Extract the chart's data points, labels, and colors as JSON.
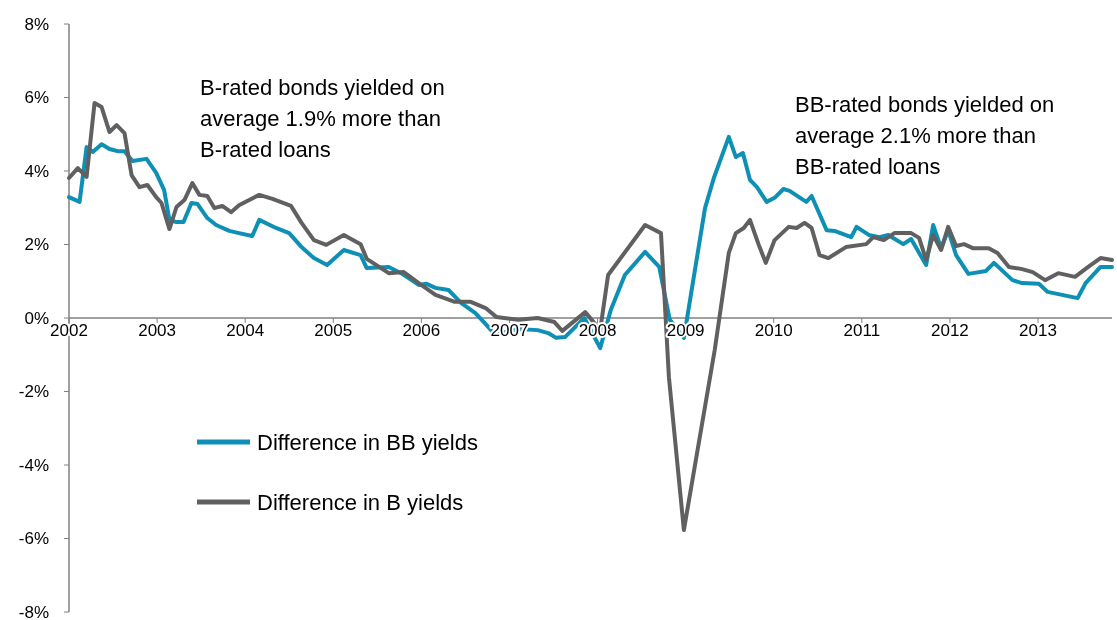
{
  "chart_data": {
    "type": "line",
    "annotations": [
      "B-rated bonds yielded on average 1.9% more than B-rated loans",
      "BB-rated bonds yielded on average 2.1% more than BB-rated loans"
    ],
    "xlim": [
      2002,
      2013.84
    ],
    "xticks": [
      2002,
      2003,
      2004,
      2005,
      2006,
      2007,
      2008,
      2009,
      2010,
      2011,
      2012,
      2013
    ],
    "ylim": [
      -8,
      8
    ],
    "yticks": [
      {
        "value": -8,
        "label": "-8%"
      },
      {
        "value": -6,
        "label": "-6%"
      },
      {
        "value": -4,
        "label": "-4%"
      },
      {
        "value": -2,
        "label": "-2%"
      },
      {
        "value": 0,
        "label": "0%"
      },
      {
        "value": 2,
        "label": "2%"
      },
      {
        "value": 4,
        "label": "4%"
      },
      {
        "value": 6,
        "label": "6%"
      },
      {
        "value": 8,
        "label": "8%"
      }
    ],
    "grid": false,
    "legend": "bottom left",
    "marker": "none",
    "line_style": "solid",
    "series": [
      {
        "name": "Difference in BB yields",
        "color": "#0e8fb5",
        "x": [
          2002.0,
          2002.12,
          2002.2,
          2002.27,
          2002.37,
          2002.46,
          2002.55,
          2002.63,
          2002.72,
          2002.88,
          2002.99,
          2003.08,
          2003.14,
          2003.22,
          2003.3,
          2003.39,
          2003.46,
          2003.57,
          2003.67,
          2003.82,
          2003.93,
          2004.08,
          2004.16,
          2004.35,
          2004.5,
          2004.64,
          2004.78,
          2004.93,
          2005.12,
          2005.31,
          2005.38,
          2005.63,
          2005.77,
          2005.97,
          2006.06,
          2006.16,
          2006.31,
          2006.45,
          2006.61,
          2006.72,
          2006.84,
          2006.95,
          2007.1,
          2007.32,
          2007.44,
          2007.53,
          2007.63,
          2007.85,
          2008.03,
          2008.15,
          2008.31,
          2008.54,
          2008.7,
          2008.82,
          2008.98,
          2009.22,
          2009.32,
          2009.49,
          2009.57,
          2009.65,
          2009.73,
          2009.81,
          2009.92,
          2010.01,
          2010.11,
          2010.18,
          2010.37,
          2010.43,
          2010.6,
          2010.69,
          2010.88,
          2010.94,
          2011.08,
          2011.2,
          2011.3,
          2011.47,
          2011.56,
          2011.73,
          2011.81,
          2011.9,
          2011.98,
          2012.07,
          2012.21,
          2012.41,
          2012.5,
          2012.71,
          2012.82,
          2013.01,
          2013.11,
          2013.45,
          2013.54,
          2013.71,
          2013.84
        ],
        "values": [
          3.29,
          3.16,
          4.65,
          4.52,
          4.73,
          4.6,
          4.54,
          4.54,
          4.27,
          4.33,
          3.95,
          3.48,
          2.67,
          2.61,
          2.61,
          3.13,
          3.1,
          2.72,
          2.53,
          2.37,
          2.31,
          2.23,
          2.67,
          2.45,
          2.31,
          1.93,
          1.63,
          1.44,
          1.85,
          1.71,
          1.36,
          1.39,
          1.22,
          0.9,
          0.93,
          0.82,
          0.76,
          0.41,
          0.14,
          -0.14,
          -0.46,
          -0.38,
          -0.3,
          -0.33,
          -0.41,
          -0.54,
          -0.52,
          0.0,
          -0.82,
          0.22,
          1.17,
          1.8,
          1.39,
          -0.05,
          -0.54,
          2.99,
          3.81,
          4.93,
          4.38,
          4.49,
          3.76,
          3.56,
          3.16,
          3.27,
          3.51,
          3.46,
          3.16,
          3.32,
          2.39,
          2.37,
          2.2,
          2.48,
          2.26,
          2.2,
          2.26,
          2.01,
          2.15,
          1.44,
          2.53,
          1.9,
          2.39,
          1.71,
          1.2,
          1.28,
          1.5,
          1.03,
          0.95,
          0.93,
          0.71,
          0.54,
          0.95,
          1.39,
          1.39
        ]
      },
      {
        "name": "Difference in B yields",
        "color": "#606060",
        "x": [
          2002.0,
          2002.1,
          2002.2,
          2002.29,
          2002.37,
          2002.46,
          2002.54,
          2002.63,
          2002.71,
          2002.8,
          2002.89,
          2002.99,
          2003.05,
          2003.14,
          2003.22,
          2003.31,
          2003.4,
          2003.48,
          2003.57,
          2003.65,
          2003.74,
          2003.84,
          2003.93,
          2004.16,
          2004.31,
          2004.52,
          2004.64,
          2004.78,
          2004.92,
          2005.12,
          2005.31,
          2005.38,
          2005.63,
          2005.8,
          2005.97,
          2006.16,
          2006.38,
          2006.56,
          2006.73,
          2006.85,
          2007.1,
          2007.32,
          2007.51,
          2007.6,
          2007.86,
          2008.03,
          2008.12,
          2008.54,
          2008.72,
          2008.81,
          2008.98,
          2009.33,
          2009.49,
          2009.57,
          2009.66,
          2009.73,
          2009.83,
          2009.91,
          2010.01,
          2010.17,
          2010.26,
          2010.35,
          2010.43,
          2010.52,
          2010.62,
          2010.82,
          2011.05,
          2011.13,
          2011.25,
          2011.37,
          2011.56,
          2011.65,
          2011.73,
          2011.81,
          2011.9,
          2011.98,
          2012.07,
          2012.16,
          2012.26,
          2012.44,
          2012.54,
          2012.67,
          2012.82,
          2012.94,
          2013.08,
          2013.23,
          2013.42,
          2013.57,
          2013.71,
          2013.84
        ],
        "values": [
          3.81,
          4.08,
          3.84,
          5.85,
          5.74,
          5.06,
          5.25,
          5.03,
          3.89,
          3.56,
          3.62,
          3.29,
          3.13,
          2.42,
          3.02,
          3.21,
          3.67,
          3.35,
          3.32,
          2.99,
          3.05,
          2.88,
          3.07,
          3.35,
          3.24,
          3.05,
          2.59,
          2.12,
          1.99,
          2.26,
          2.01,
          1.61,
          1.22,
          1.25,
          0.95,
          0.63,
          0.44,
          0.44,
          0.27,
          0.03,
          -0.05,
          0.0,
          -0.11,
          -0.35,
          0.16,
          -0.33,
          1.17,
          2.53,
          2.31,
          -1.61,
          -5.77,
          -0.87,
          1.77,
          2.31,
          2.45,
          2.67,
          1.99,
          1.5,
          2.12,
          2.48,
          2.45,
          2.59,
          2.45,
          1.71,
          1.63,
          1.93,
          2.01,
          2.2,
          2.12,
          2.31,
          2.31,
          2.18,
          1.58,
          2.26,
          1.85,
          2.48,
          1.96,
          2.01,
          1.9,
          1.9,
          1.77,
          1.39,
          1.33,
          1.25,
          1.03,
          1.22,
          1.12,
          1.39,
          1.63,
          1.58
        ]
      }
    ]
  }
}
